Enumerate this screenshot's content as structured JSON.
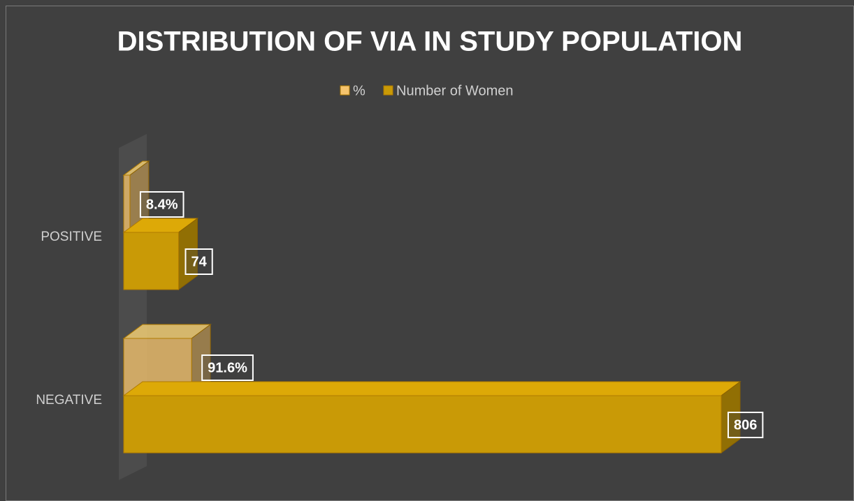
{
  "chart_data": {
    "type": "bar3d",
    "title": "DISTRIBUTION OF VIA IN STUDY POPULATION",
    "categories": [
      "POSITIVE",
      "NEGATIVE"
    ],
    "series": [
      {
        "name": "%",
        "color": "#f5c46e",
        "values": [
          8.4,
          91.6
        ],
        "value_labels": [
          "8.4%",
          "91.6%"
        ]
      },
      {
        "name": "Number of Women",
        "color": "#c99a06",
        "values": [
          74,
          806
        ]
      }
    ],
    "legend": "top"
  }
}
